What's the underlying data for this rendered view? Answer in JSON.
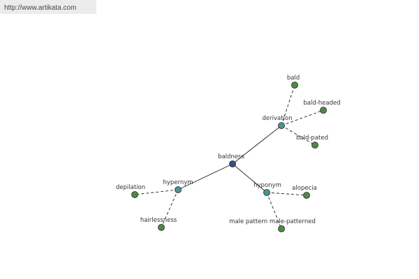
{
  "header": {
    "url": "http://www.artikata.com"
  },
  "nodes": [
    {
      "label": "baldness"
    },
    {
      "label": "hypernym"
    },
    {
      "label": "hyponym"
    },
    {
      "label": "derivation"
    },
    {
      "label": "bald"
    },
    {
      "label": "bald-headed"
    },
    {
      "label": "bald-pated"
    },
    {
      "label": "depilation"
    },
    {
      "label": "hairlessness"
    },
    {
      "label": "alopecia"
    },
    {
      "label": "male pattern male-patterned"
    }
  ]
}
